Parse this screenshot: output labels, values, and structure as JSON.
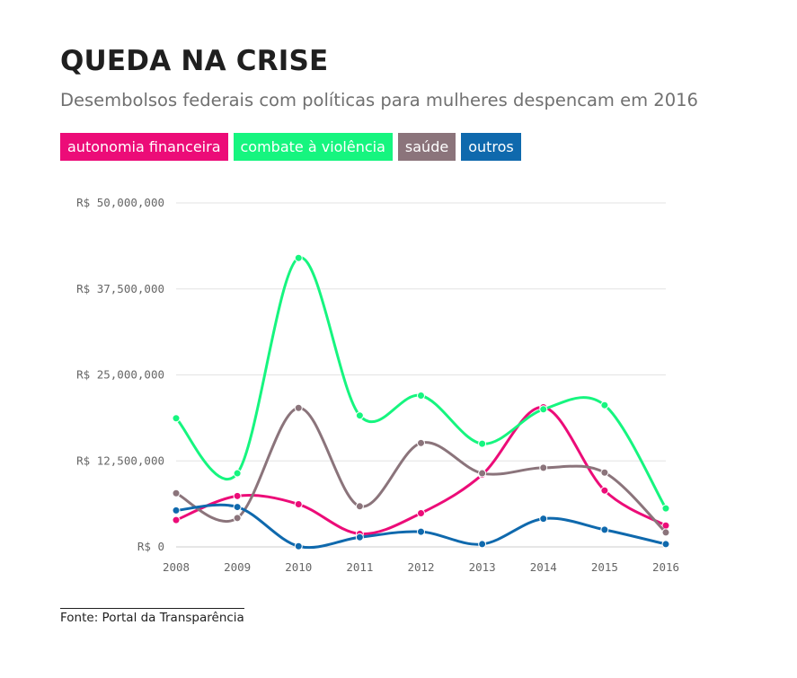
{
  "header": {
    "title": "QUEDA NA CRISE",
    "subtitle": "Desembolsos federais com políticas para mulheres despencam em 2016"
  },
  "legend": [
    {
      "label": "autonomia financeira",
      "color": "#ec0c78"
    },
    {
      "label": "combate à violência",
      "color": "#16f57f"
    },
    {
      "label": "saúde",
      "color": "#8b747b"
    },
    {
      "label": "outros",
      "color": "#0f69ad"
    }
  ],
  "source": "Fonte: Portal da Transparência",
  "chart_data": {
    "type": "line",
    "x": [
      "2008",
      "2009",
      "2010",
      "2011",
      "2012",
      "2013",
      "2014",
      "2015",
      "2016"
    ],
    "ylim": [
      0,
      50000000
    ],
    "yticks": [
      0,
      12500000,
      25000000,
      37500000,
      50000000
    ],
    "ytick_labels": [
      "R$ 0",
      "R$ 12,500,000",
      "R$ 25,000,000",
      "R$ 37,500,000",
      "R$ 50,000,000"
    ],
    "grid": true,
    "legend_placement": "top",
    "series": [
      {
        "name": "autonomia financeira",
        "color": "#ec0c78",
        "values": [
          3900000,
          7400000,
          6200000,
          1900000,
          4900000,
          10500000,
          20300000,
          8200000,
          3100000
        ]
      },
      {
        "name": "combate à violência",
        "color": "#16f57f",
        "values": [
          18700000,
          10700000,
          42000000,
          19100000,
          22000000,
          15000000,
          20000000,
          20600000,
          5600000
        ]
      },
      {
        "name": "saúde",
        "color": "#8b747b",
        "values": [
          7800000,
          4200000,
          20200000,
          5900000,
          15100000,
          10700000,
          11500000,
          10800000,
          2100000
        ]
      },
      {
        "name": "outros",
        "color": "#0f69ad",
        "values": [
          5300000,
          5800000,
          100000,
          1400000,
          2200000,
          400000,
          4100000,
          2500000,
          400000
        ]
      }
    ]
  }
}
